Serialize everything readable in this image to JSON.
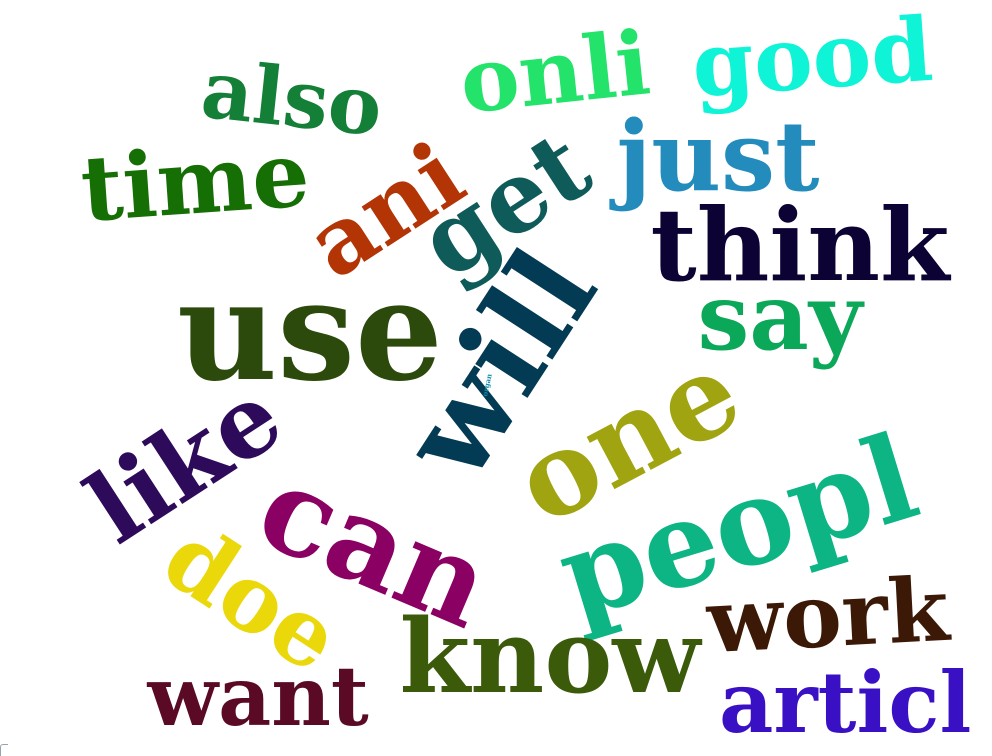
{
  "word_cloud": {
    "words": [
      {
        "text": "use",
        "color": "#2c4a0c"
      },
      {
        "text": "will",
        "color": "#033a54"
      },
      {
        "text": "peopl",
        "color": "#0db584"
      },
      {
        "text": "can",
        "color": "#8a0063"
      },
      {
        "text": "one",
        "color": "#a0a410"
      },
      {
        "text": "think",
        "color": "#0c0233"
      },
      {
        "text": "get",
        "color": "#0f5b5a"
      },
      {
        "text": "know",
        "color": "#3b5b0b"
      },
      {
        "text": "like",
        "color": "#2d0a5a"
      },
      {
        "text": "time",
        "color": "#166f04"
      },
      {
        "text": "also",
        "color": "#147f37"
      },
      {
        "text": "onli",
        "color": "#24e36b"
      },
      {
        "text": "good",
        "color": "#0ff4d6"
      },
      {
        "text": "just",
        "color": "#238cbc"
      },
      {
        "text": "ani",
        "color": "#b33506"
      },
      {
        "text": "say",
        "color": "#0ca859"
      },
      {
        "text": "work",
        "color": "#3c1906"
      },
      {
        "text": "doe",
        "color": "#ead80a"
      },
      {
        "text": "want",
        "color": "#5b0a25"
      },
      {
        "text": "articl",
        "color": "#3a10c4"
      },
      {
        "text": "organ",
        "color": "#0f8fa6"
      }
    ]
  }
}
